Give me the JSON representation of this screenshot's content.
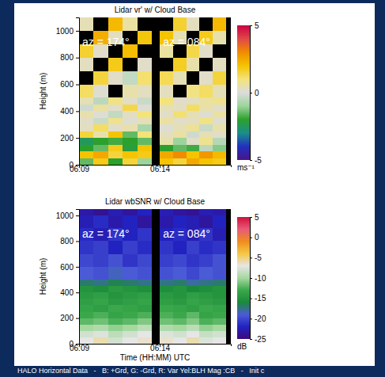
{
  "chart_data": [
    {
      "type": "heatmap",
      "title": "Lidar vr' w/ Cloud Base",
      "y_label": "Height (m)",
      "xlim": [
        9,
        18.4
      ],
      "xticks": [
        {
          "value": 9,
          "label": "06:09"
        },
        {
          "value": 14,
          "label": "06:14"
        }
      ],
      "ylim": [
        0,
        1100
      ],
      "yticks": [
        0,
        200,
        400,
        600,
        800,
        1000
      ],
      "y_edges": [
        0,
        50,
        100,
        150,
        200,
        250,
        300,
        350,
        400,
        450,
        500,
        600,
        700,
        800,
        900,
        1000,
        1100
      ],
      "segments": [
        {
          "label": "az = 174°",
          "x_edges": [
            9,
            9.9,
            10.8,
            11.7,
            12.6,
            13.5
          ],
          "cells": [
            [
              -1.5,
              1.8,
              -2,
              1.5,
              -1
            ],
            [
              2,
              2.5,
              1.5,
              2,
              1.8
            ],
            [
              -2,
              -1.5,
              1.8,
              -2.2,
              2
            ],
            [
              -2.5,
              -2,
              -1.8,
              -2,
              -1.5
            ],
            [
              1.5,
              0.5,
              2,
              -1.5,
              1
            ],
            [
              0.3,
              1.2,
              0.2,
              0.5,
              -0.8
            ],
            [
              0.2,
              -0.3,
              0.8,
              0.1,
              0.4
            ],
            [
              0.5,
              0.1,
              -0.4,
              0.3,
              1.0
            ],
            [
              -0.2,
              0.6,
              0.2,
              1.4,
              0.1
            ],
            [
              0.4,
              -0.5,
              0.9,
              0.2,
              -0.3
            ],
            [
              1.2,
              0.1,
              null,
              0.5,
              0.3
            ],
            [
              null,
              1.5,
              0.2,
              -0.4,
              1.1
            ],
            [
              0.3,
              null,
              1.8,
              null,
              0.2
            ],
            [
              1.6,
              0.2,
              null,
              2.1,
              null
            ],
            [
              null,
              2.4,
              0.3,
              null,
              1.9
            ],
            [
              0.4,
              null,
              2.2,
              0.6,
              null
            ]
          ]
        },
        {
          "label": "az = 084°",
          "x_edges": [
            14,
            14.82,
            15.64,
            16.46,
            17.28,
            18.1
          ],
          "cells": [
            [
              2,
              1.5,
              2.5,
              2,
              1.8
            ],
            [
              2.5,
              3,
              2,
              2.8,
              2.2
            ],
            [
              -2,
              -1.5,
              -1.8,
              -0.5,
              -1.2
            ],
            [
              0.5,
              -1,
              0.2,
              0.8,
              -0.6
            ],
            [
              0.3,
              0.6,
              -0.2,
              0.4,
              0.2
            ],
            [
              0.1,
              0.4,
              0.7,
              -0.3,
              0.5
            ],
            [
              0.6,
              0.2,
              0.3,
              0.9,
              0.1
            ],
            [
              0.2,
              1.1,
              0.4,
              0.1,
              0.6
            ],
            [
              0.4,
              0.3,
              1.2,
              0.5,
              0.2
            ],
            [
              1.0,
              0.2,
              0.3,
              0.6,
              0.8
            ],
            [
              0.3,
              null,
              0.9,
              1.2,
              0.4
            ],
            [
              1.3,
              0.4,
              null,
              0.2,
              1.5
            ],
            [
              null,
              1.7,
              0.5,
              null,
              0.3
            ],
            [
              0.6,
              null,
              1.4,
              0.2,
              null
            ],
            [
              2.0,
              0.4,
              null,
              1.8,
              0.5
            ],
            [
              null,
              1.6,
              0.3,
              null,
              2.2
            ]
          ]
        }
      ],
      "colorbar": {
        "range": [
          -5,
          5
        ],
        "ticks": [
          -5,
          0,
          5
        ],
        "label": "ms⁻¹"
      },
      "colors": [
        "#4a1487",
        "#2230c0",
        "#1b8f8a",
        "#2ca02c",
        "#9cd49c",
        "#dcdcdc",
        "#f3e37a",
        "#f5c400",
        "#f08c00",
        "#e04848",
        "#cc0044"
      ]
    },
    {
      "type": "heatmap",
      "title": "Lidar wbSNR w/ Cloud Base",
      "x_label": "Time (HH:MM) UTC",
      "y_label": "Height (m)",
      "xlim": [
        9,
        18.4
      ],
      "xticks": [
        {
          "value": 9,
          "label": "06:09"
        },
        {
          "value": 14,
          "label": "06:14"
        }
      ],
      "ylim": [
        0,
        1050
      ],
      "yticks": [
        0,
        200,
        400,
        600,
        800,
        1000
      ],
      "y_edges": [
        0,
        50,
        100,
        150,
        200,
        250,
        300,
        350,
        400,
        450,
        500,
        600,
        700,
        800,
        900,
        1000,
        1100
      ],
      "segments": [
        {
          "label": "az = 174°",
          "x_edges": [
            9,
            9.9,
            10.8,
            11.7,
            12.6,
            13.5
          ],
          "cells": [
            [
              -7,
              -6,
              -8,
              -7,
              -6.5
            ],
            [
              -8,
              -7.5,
              -9,
              -8,
              -7
            ],
            [
              -10,
              -9.5,
              -10.5,
              -10,
              -9
            ],
            [
              -12,
              -11.5,
              -12.5,
              -12,
              -11
            ],
            [
              -13,
              -12.5,
              -13.5,
              -13,
              -12.5
            ],
            [
              -13.5,
              -14,
              -13,
              -13.5,
              -14
            ],
            [
              -14,
              -13.5,
              -14.5,
              -14,
              -13.5
            ],
            [
              -14.5,
              -14,
              -15,
              -14.5,
              -14
            ],
            [
              -15,
              -15.5,
              -14.5,
              -15,
              -15.5
            ],
            [
              -17,
              -17.5,
              -16.5,
              -17,
              -17.5
            ],
            [
              -19,
              -19.5,
              -18.5,
              -19,
              -19.5
            ],
            [
              -20,
              -20.5,
              -19.5,
              -21,
              -20
            ],
            [
              -21,
              -20.5,
              -22,
              -20.5,
              -21.5
            ],
            [
              -21.5,
              -22.5,
              -21,
              -22,
              -21
            ],
            [
              -22.5,
              -21.5,
              -23,
              -22,
              -23.5
            ],
            [
              -23,
              -24,
              -22.5,
              -23.5,
              -22
            ]
          ]
        },
        {
          "label": "az = 084°",
          "x_edges": [
            14,
            14.82,
            15.64,
            16.46,
            17.28,
            18.1
          ],
          "cells": [
            [
              -6.5,
              -7,
              -6,
              -7.5,
              -7
            ],
            [
              -7.5,
              -8,
              -7,
              -8.5,
              -8
            ],
            [
              -9.5,
              -10,
              -9,
              -10.5,
              -10
            ],
            [
              -11.5,
              -12,
              -11,
              -12.5,
              -12
            ],
            [
              -12.5,
              -13,
              -12,
              -13.5,
              -13
            ],
            [
              -13,
              -13.5,
              -14,
              -13,
              -13.5
            ],
            [
              -14,
              -14.5,
              -13.5,
              -14,
              -14.5
            ],
            [
              -14.5,
              -15,
              -14,
              -14.5,
              -15
            ],
            [
              -15.5,
              -15,
              -16,
              -15.5,
              -15
            ],
            [
              -17.5,
              -17,
              -18,
              -17.5,
              -17
            ],
            [
              -19.5,
              -19,
              -20,
              -19,
              -19.5
            ],
            [
              -20.5,
              -20,
              -21,
              -20.5,
              -19.5
            ],
            [
              -21,
              -22,
              -20.5,
              -21.5,
              -21
            ],
            [
              -22,
              -21.5,
              -22.5,
              -21,
              -22.5
            ],
            [
              -23,
              -22,
              -22.5,
              -23.5,
              -22
            ],
            [
              -22.5,
              -23.5,
              -24,
              -22.5,
              -23
            ]
          ]
        }
      ],
      "colorbar": {
        "range": [
          -25,
          5
        ],
        "ticks": [
          5,
          0,
          -5,
          -10,
          -15,
          -20,
          -25
        ],
        "label": "dB"
      },
      "colors": [
        "#3d0a7a",
        "#2222c0",
        "#4b5bd6",
        "#1a8a3a",
        "#3aa84a",
        "#a6d8a0",
        "#e6e6e6",
        "#f5c842",
        "#f08c1e",
        "#e85a78",
        "#d0103c"
      ]
    }
  ],
  "footer": "HALO Horizontal Data   -   B: +Grd, G: -Grd, R: Var Yel:BLH Mag :CB   -   Init c"
}
